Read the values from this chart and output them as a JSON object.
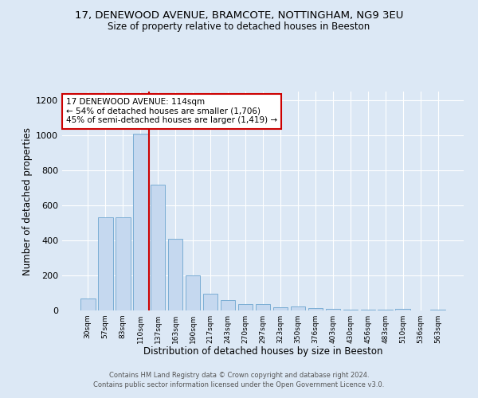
{
  "title_line1": "17, DENEWOOD AVENUE, BRAMCOTE, NOTTINGHAM, NG9 3EU",
  "title_line2": "Size of property relative to detached houses in Beeston",
  "xlabel": "Distribution of detached houses by size in Beeston",
  "ylabel": "Number of detached properties",
  "categories": [
    "30sqm",
    "57sqm",
    "83sqm",
    "110sqm",
    "137sqm",
    "163sqm",
    "190sqm",
    "217sqm",
    "243sqm",
    "270sqm",
    "297sqm",
    "323sqm",
    "350sqm",
    "376sqm",
    "403sqm",
    "430sqm",
    "456sqm",
    "483sqm",
    "510sqm",
    "536sqm",
    "563sqm"
  ],
  "values": [
    68,
    530,
    530,
    1010,
    720,
    410,
    200,
    95,
    60,
    38,
    35,
    20,
    22,
    15,
    8,
    6,
    5,
    5,
    10,
    2,
    5
  ],
  "bar_color": "#c5d8ef",
  "bar_edge_color": "#7aadd4",
  "red_line_color": "#cc0000",
  "red_line_x": 3.5,
  "annotation_text": "17 DENEWOOD AVENUE: 114sqm\n← 54% of detached houses are smaller (1,706)\n45% of semi-detached houses are larger (1,419) →",
  "annotation_box_color": "#ffffff",
  "annotation_box_edge": "#cc0000",
  "background_color": "#dce8f5",
  "plot_bg_color": "#dce8f5",
  "footer_text": "Contains HM Land Registry data © Crown copyright and database right 2024.\nContains public sector information licensed under the Open Government Licence v3.0.",
  "ylim": [
    0,
    1250
  ],
  "yticks": [
    0,
    200,
    400,
    600,
    800,
    1000,
    1200
  ]
}
